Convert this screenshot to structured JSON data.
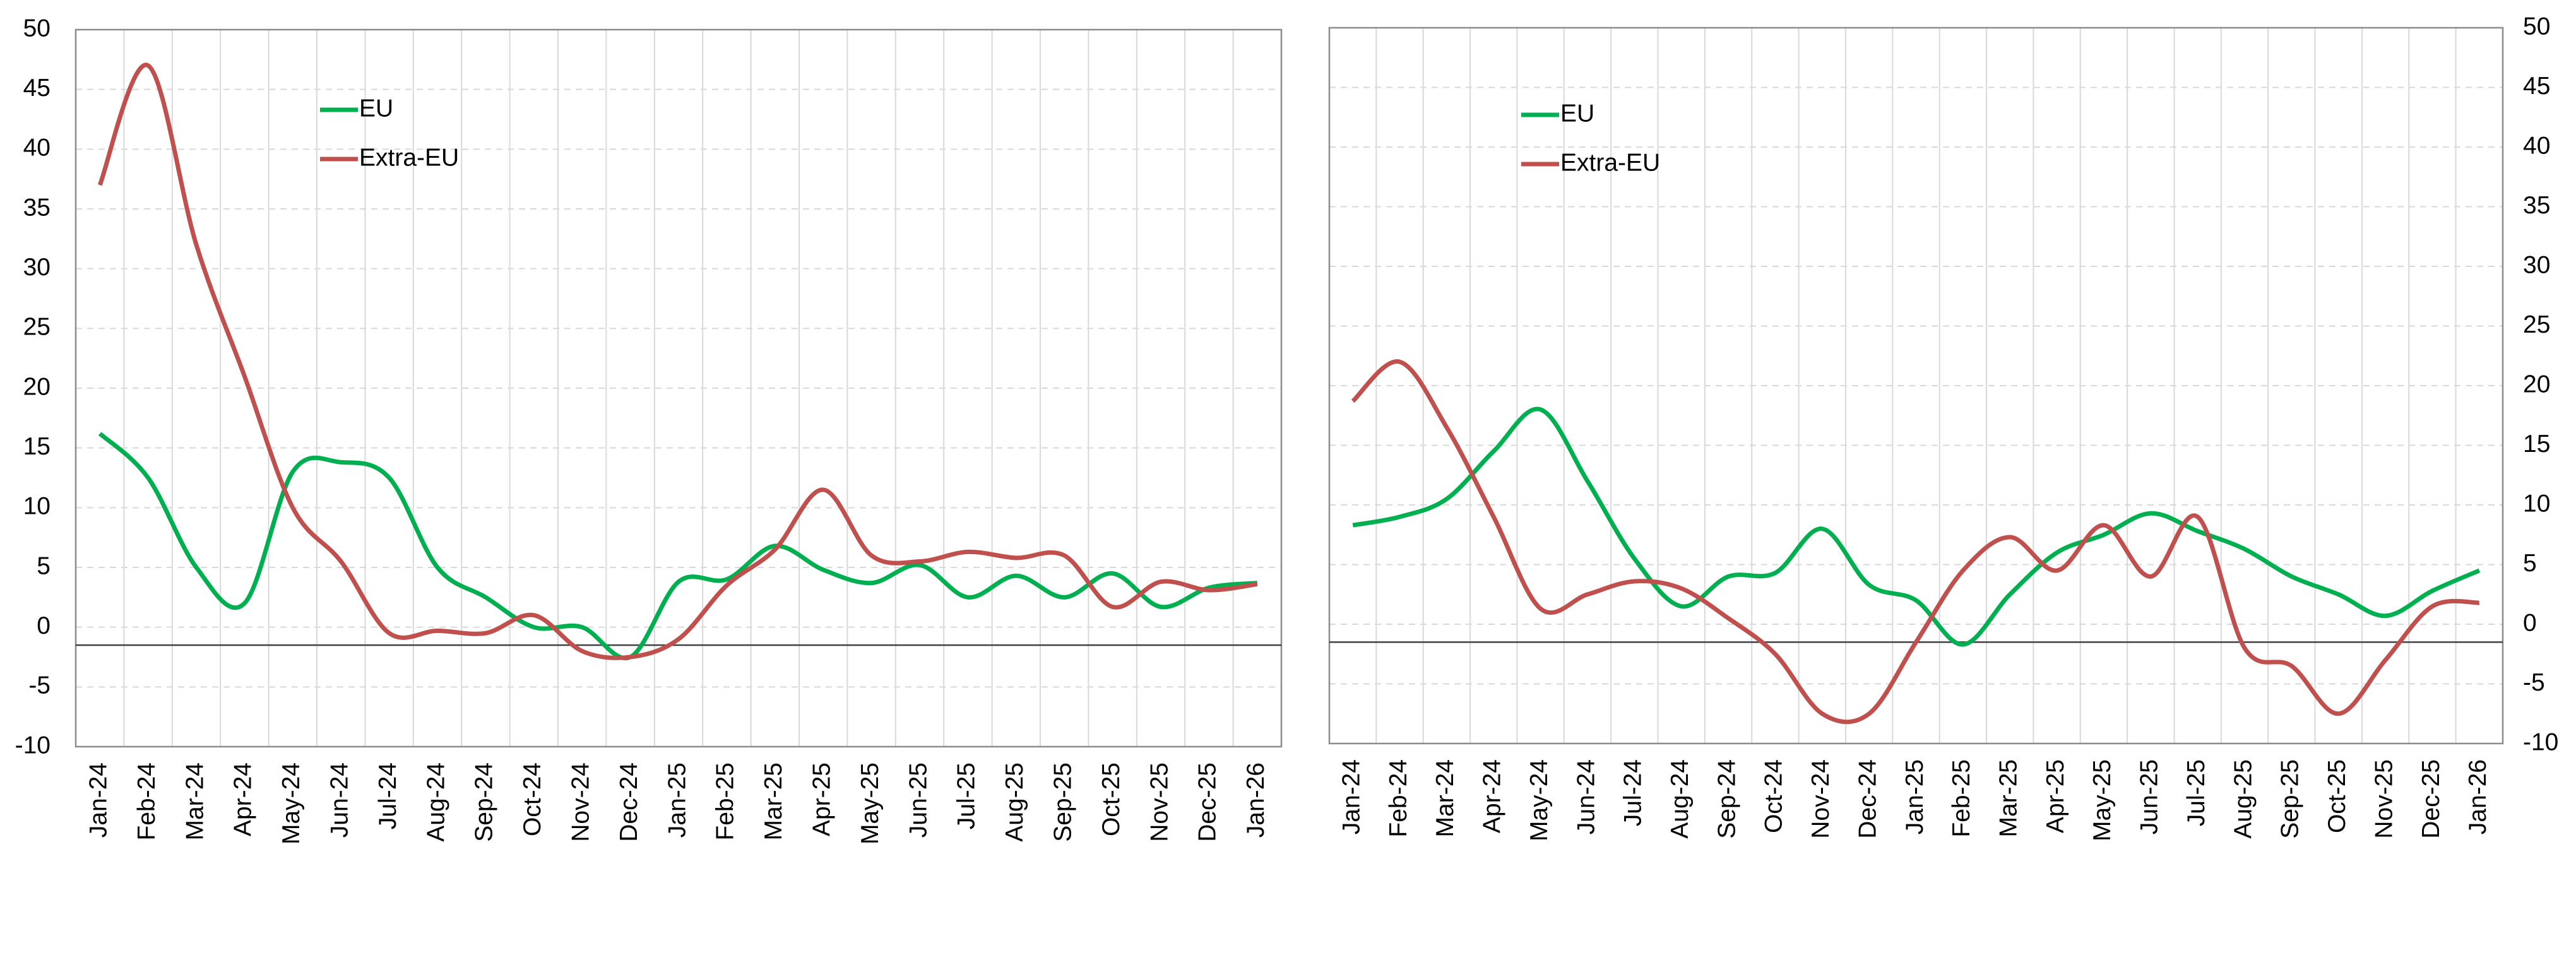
{
  "chart_data": [
    {
      "type": "line",
      "categories": [
        "Jan-24",
        "Feb-24",
        "Mar-24",
        "Apr-24",
        "May-24",
        "Jun-24",
        "Jul-24",
        "Aug-24",
        "Sep-24",
        "Oct-24",
        "Nov-24",
        "Dec-24",
        "Jan-25",
        "Feb-25",
        "Mar-25",
        "Apr-25",
        "May-25",
        "Jun-25",
        "Jul-25",
        "Aug-25",
        "Sep-25",
        "Oct-25",
        "Nov-25",
        "Dec-25",
        "Jan-26"
      ],
      "series": [
        {
          "name": "EU",
          "color": "#00b050",
          "values": [
            16.2,
            12.5,
            5,
            2,
            13,
            13.8,
            12.5,
            5,
            2.5,
            0,
            0,
            -2.5,
            3.8,
            4,
            6.8,
            4.8,
            3.7,
            5.2,
            2.5,
            4.3,
            2.5,
            4.5,
            1.7,
            3.3,
            3.7
          ]
        },
        {
          "name": "Extra-EU",
          "color": "#c0504d",
          "values": [
            37,
            47,
            32,
            21,
            10,
            5.5,
            -0.5,
            -0.3,
            -0.5,
            1,
            -2,
            -2.5,
            -1,
            3.5,
            6.5,
            11.5,
            6,
            5.5,
            6.3,
            5.8,
            6,
            1.7,
            3.8,
            3.1,
            3.6
          ]
        }
      ],
      "ylim": [
        -10,
        50
      ],
      "yticks": [
        -10,
        -5,
        0,
        5,
        10,
        15,
        20,
        25,
        30,
        35,
        40,
        45,
        50
      ],
      "x_axis_at": -1.5,
      "grid": true,
      "y_axis_side": "left",
      "legend": "upper left"
    },
    {
      "type": "line",
      "categories": [
        "Jan-24",
        "Feb-24",
        "Mar-24",
        "Apr-24",
        "May-24",
        "Jun-24",
        "Jul-24",
        "Aug-24",
        "Sep-24",
        "Oct-24",
        "Nov-24",
        "Dec-24",
        "Jan-25",
        "Feb-25",
        "Mar-25",
        "Apr-25",
        "May-25",
        "Jun-25",
        "Jul-25",
        "Aug-25",
        "Sep-25",
        "Oct-25",
        "Nov-25",
        "Dec-25",
        "Jan-26"
      ],
      "series": [
        {
          "name": "EU",
          "color": "#00b050",
          "values": [
            8.3,
            9,
            10.5,
            14.5,
            18,
            12,
            5.5,
            1.5,
            4,
            4.3,
            8,
            3.3,
            2,
            -1.7,
            2.5,
            6,
            7.5,
            9.3,
            7.8,
            6.3,
            4,
            2.5,
            0.7,
            2.8,
            4.5
          ]
        },
        {
          "name": "Extra-EU",
          "color": "#c0504d",
          "values": [
            18.7,
            22,
            16.5,
            9,
            1.3,
            2.5,
            3.6,
            3,
            0.5,
            -2.5,
            -7.5,
            -7.5,
            -1.5,
            4.5,
            7.3,
            4.5,
            8.3,
            4,
            9,
            -2,
            -3.5,
            -7.5,
            -3,
            1.5,
            1.8
          ]
        }
      ],
      "ylim": [
        -10,
        50
      ],
      "yticks": [
        -10,
        -5,
        0,
        5,
        10,
        15,
        20,
        25,
        30,
        35,
        40,
        45,
        50
      ],
      "x_axis_at": -1.5,
      "grid": true,
      "y_axis_side": "right",
      "legend": "upper left"
    }
  ]
}
